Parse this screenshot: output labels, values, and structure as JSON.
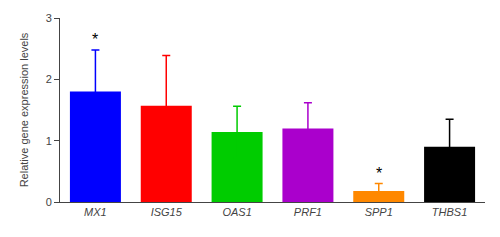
{
  "chart_data": {
    "type": "bar",
    "categories": [
      "MX1",
      "ISG15",
      "OAS1",
      "PRF1",
      "SPP1",
      "THBS1"
    ],
    "values": [
      1.8,
      1.57,
      1.14,
      1.2,
      0.18,
      0.9
    ],
    "errors": [
      0.68,
      0.82,
      0.42,
      0.42,
      0.12,
      0.45
    ],
    "colors": [
      "#0000ff",
      "#ff0000",
      "#00cc00",
      "#aa00cc",
      "#ff8800",
      "#000000"
    ],
    "ylabel": "Relative gene expression levels",
    "ylim": [
      0,
      3
    ],
    "yticks": [
      0,
      1,
      2,
      3
    ],
    "grid": false,
    "annotations": [
      {
        "x": "MX1",
        "text": "*"
      },
      {
        "x": "SPP1",
        "text": "*"
      }
    ]
  }
}
